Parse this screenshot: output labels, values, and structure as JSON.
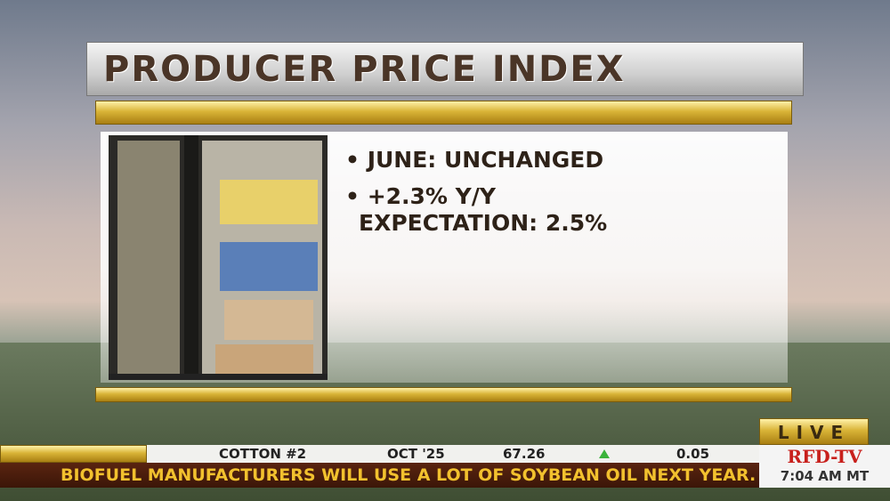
{
  "header": {
    "title": "PRODUCER PRICE INDEX"
  },
  "bullets": [
    "JUNE: UNCHANGED",
    "+2.3% Y/Y",
    "EXPECTATION: 2.5%"
  ],
  "ticker": {
    "commodity": "COTTON #2",
    "contract": "OCT '25",
    "price": "67.26",
    "change": "0.05"
  },
  "crawl": "BIOFUEL MANUFACTURERS WILL USE A LOT OF SOYBEAN OIL NEXT YEAR.  A STUDY",
  "badge": {
    "live": "LIVE",
    "logo": "RFD-TV",
    "time": "7:04 AM MT"
  }
}
